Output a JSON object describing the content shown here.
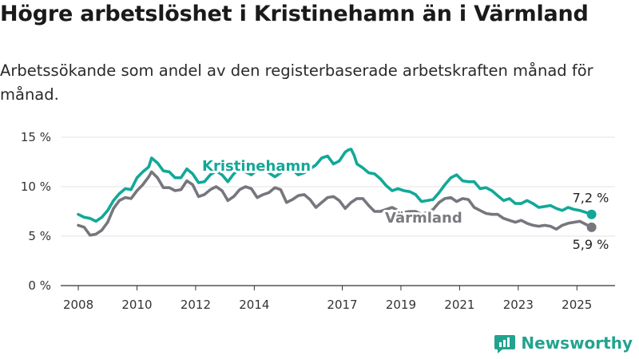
{
  "title": "Högre arbetslöshet i Kristinehamn än i Värmland",
  "subtitle": "Arbetssökande som andel av den registerbaserade arbetskraften månad för månad.",
  "brand": "Newsworthy",
  "colors": {
    "kristinehamn": "#12a898",
    "varmland": "#76767c",
    "grid": "#e3e3e3",
    "axis": "#333333"
  },
  "chart_data": {
    "type": "line",
    "xlim": [
      2007.4,
      2026.3
    ],
    "ylim": [
      0,
      15
    ],
    "grid": "horizontal",
    "y_ticks": [
      {
        "value": 0,
        "label": "0 %"
      },
      {
        "value": 5,
        "label": "5 %"
      },
      {
        "value": 10,
        "label": "10 %"
      },
      {
        "value": 15,
        "label": "15 %"
      }
    ],
    "x_ticks": [
      {
        "value": 2008,
        "label": "2008"
      },
      {
        "value": 2010,
        "label": "2010"
      },
      {
        "value": 2012,
        "label": "2012"
      },
      {
        "value": 2014,
        "label": "2014"
      },
      {
        "value": 2017,
        "label": "2017"
      },
      {
        "value": 2019,
        "label": "2019"
      },
      {
        "value": 2021,
        "label": "2021"
      },
      {
        "value": 2023,
        "label": "2023"
      },
      {
        "value": 2025,
        "label": "2025"
      }
    ],
    "series": [
      {
        "name": "Kristinehamn",
        "end_label": "7,2 %",
        "points": [
          [
            2008.0,
            7.2
          ],
          [
            2008.2,
            6.9
          ],
          [
            2008.4,
            6.8
          ],
          [
            2008.6,
            6.5
          ],
          [
            2008.8,
            6.9
          ],
          [
            2009.0,
            7.6
          ],
          [
            2009.2,
            8.6
          ],
          [
            2009.4,
            9.3
          ],
          [
            2009.6,
            9.8
          ],
          [
            2009.8,
            9.7
          ],
          [
            2010.0,
            10.9
          ],
          [
            2010.2,
            11.5
          ],
          [
            2010.4,
            12.0
          ],
          [
            2010.5,
            12.9
          ],
          [
            2010.7,
            12.4
          ],
          [
            2010.9,
            11.6
          ],
          [
            2011.1,
            11.5
          ],
          [
            2011.3,
            10.9
          ],
          [
            2011.5,
            10.9
          ],
          [
            2011.7,
            11.8
          ],
          [
            2011.9,
            11.3
          ],
          [
            2012.1,
            10.4
          ],
          [
            2012.3,
            10.5
          ],
          [
            2012.5,
            11.2
          ],
          [
            2012.7,
            11.6
          ],
          [
            2012.9,
            11.2
          ],
          [
            2013.1,
            10.5
          ],
          [
            2013.3,
            11.3
          ],
          [
            2013.5,
            11.8
          ],
          [
            2013.7,
            11.5
          ],
          [
            2013.9,
            11.2
          ],
          [
            2014.1,
            11.7
          ],
          [
            2014.3,
            12.0
          ],
          [
            2014.5,
            11.4
          ],
          [
            2014.7,
            11.0
          ],
          [
            2014.9,
            11.4
          ],
          [
            2015.1,
            11.9
          ],
          [
            2015.3,
            11.7
          ],
          [
            2015.5,
            11.2
          ],
          [
            2015.7,
            11.4
          ],
          [
            2015.9,
            11.8
          ],
          [
            2016.1,
            12.2
          ],
          [
            2016.3,
            12.9
          ],
          [
            2016.5,
            13.1
          ],
          [
            2016.7,
            12.3
          ],
          [
            2016.9,
            12.6
          ],
          [
            2017.1,
            13.5
          ],
          [
            2017.2,
            13.7
          ],
          [
            2017.3,
            13.8
          ],
          [
            2017.4,
            13.2
          ],
          [
            2017.5,
            12.3
          ],
          [
            2017.7,
            11.9
          ],
          [
            2017.9,
            11.4
          ],
          [
            2018.1,
            11.3
          ],
          [
            2018.3,
            10.8
          ],
          [
            2018.5,
            10.1
          ],
          [
            2018.7,
            9.6
          ],
          [
            2018.9,
            9.8
          ],
          [
            2019.1,
            9.6
          ],
          [
            2019.3,
            9.5
          ],
          [
            2019.5,
            9.2
          ],
          [
            2019.7,
            8.5
          ],
          [
            2019.9,
            8.6
          ],
          [
            2020.1,
            8.7
          ],
          [
            2020.3,
            9.4
          ],
          [
            2020.5,
            10.2
          ],
          [
            2020.7,
            10.9
          ],
          [
            2020.9,
            11.2
          ],
          [
            2021.1,
            10.6
          ],
          [
            2021.3,
            10.5
          ],
          [
            2021.5,
            10.5
          ],
          [
            2021.7,
            9.8
          ],
          [
            2021.9,
            9.9
          ],
          [
            2022.1,
            9.6
          ],
          [
            2022.3,
            9.1
          ],
          [
            2022.5,
            8.6
          ],
          [
            2022.7,
            8.8
          ],
          [
            2022.9,
            8.3
          ],
          [
            2023.1,
            8.3
          ],
          [
            2023.3,
            8.6
          ],
          [
            2023.5,
            8.3
          ],
          [
            2023.7,
            7.9
          ],
          [
            2023.9,
            8.0
          ],
          [
            2024.1,
            8.1
          ],
          [
            2024.3,
            7.8
          ],
          [
            2024.5,
            7.6
          ],
          [
            2024.7,
            7.9
          ],
          [
            2024.9,
            7.7
          ],
          [
            2025.1,
            7.6
          ],
          [
            2025.3,
            7.4
          ],
          [
            2025.5,
            7.2
          ]
        ]
      },
      {
        "name": "Värmland",
        "end_label": "5,9 %",
        "points": [
          [
            2008.0,
            6.1
          ],
          [
            2008.2,
            5.9
          ],
          [
            2008.4,
            5.1
          ],
          [
            2008.6,
            5.2
          ],
          [
            2008.8,
            5.6
          ],
          [
            2009.0,
            6.4
          ],
          [
            2009.2,
            7.8
          ],
          [
            2009.4,
            8.6
          ],
          [
            2009.6,
            8.9
          ],
          [
            2009.8,
            8.8
          ],
          [
            2010.0,
            9.6
          ],
          [
            2010.2,
            10.2
          ],
          [
            2010.4,
            11.0
          ],
          [
            2010.5,
            11.5
          ],
          [
            2010.7,
            10.9
          ],
          [
            2010.9,
            9.9
          ],
          [
            2011.1,
            9.9
          ],
          [
            2011.3,
            9.6
          ],
          [
            2011.5,
            9.7
          ],
          [
            2011.7,
            10.6
          ],
          [
            2011.9,
            10.2
          ],
          [
            2012.1,
            9.0
          ],
          [
            2012.3,
            9.2
          ],
          [
            2012.5,
            9.7
          ],
          [
            2012.7,
            10.0
          ],
          [
            2012.9,
            9.6
          ],
          [
            2013.1,
            8.6
          ],
          [
            2013.3,
            9.0
          ],
          [
            2013.5,
            9.7
          ],
          [
            2013.7,
            10.0
          ],
          [
            2013.9,
            9.8
          ],
          [
            2014.1,
            8.9
          ],
          [
            2014.3,
            9.2
          ],
          [
            2014.5,
            9.4
          ],
          [
            2014.7,
            9.9
          ],
          [
            2014.9,
            9.7
          ],
          [
            2015.1,
            8.4
          ],
          [
            2015.3,
            8.7
          ],
          [
            2015.5,
            9.1
          ],
          [
            2015.7,
            9.2
          ],
          [
            2015.9,
            8.7
          ],
          [
            2016.1,
            7.9
          ],
          [
            2016.3,
            8.4
          ],
          [
            2016.5,
            8.9
          ],
          [
            2016.7,
            9.0
          ],
          [
            2016.9,
            8.6
          ],
          [
            2017.1,
            7.8
          ],
          [
            2017.3,
            8.4
          ],
          [
            2017.5,
            8.8
          ],
          [
            2017.7,
            8.8
          ],
          [
            2017.9,
            8.1
          ],
          [
            2018.1,
            7.5
          ],
          [
            2018.3,
            7.5
          ],
          [
            2018.5,
            7.7
          ],
          [
            2018.7,
            7.9
          ],
          [
            2018.9,
            7.6
          ],
          [
            2019.1,
            7.4
          ],
          [
            2019.3,
            7.5
          ],
          [
            2019.5,
            7.5
          ],
          [
            2019.7,
            7.2
          ],
          [
            2019.9,
            7.4
          ],
          [
            2020.1,
            7.7
          ],
          [
            2020.3,
            8.4
          ],
          [
            2020.5,
            8.8
          ],
          [
            2020.7,
            8.9
          ],
          [
            2020.9,
            8.5
          ],
          [
            2021.1,
            8.8
          ],
          [
            2021.3,
            8.7
          ],
          [
            2021.5,
            7.9
          ],
          [
            2021.7,
            7.6
          ],
          [
            2021.9,
            7.3
          ],
          [
            2022.1,
            7.2
          ],
          [
            2022.3,
            7.2
          ],
          [
            2022.5,
            6.8
          ],
          [
            2022.7,
            6.6
          ],
          [
            2022.9,
            6.4
          ],
          [
            2023.1,
            6.6
          ],
          [
            2023.3,
            6.3
          ],
          [
            2023.5,
            6.1
          ],
          [
            2023.7,
            6.0
          ],
          [
            2023.9,
            6.1
          ],
          [
            2024.1,
            6.0
          ],
          [
            2024.3,
            5.7
          ],
          [
            2024.5,
            6.1
          ],
          [
            2024.7,
            6.3
          ],
          [
            2024.9,
            6.4
          ],
          [
            2025.1,
            6.5
          ],
          [
            2025.3,
            6.2
          ],
          [
            2025.5,
            5.9
          ]
        ]
      }
    ]
  }
}
